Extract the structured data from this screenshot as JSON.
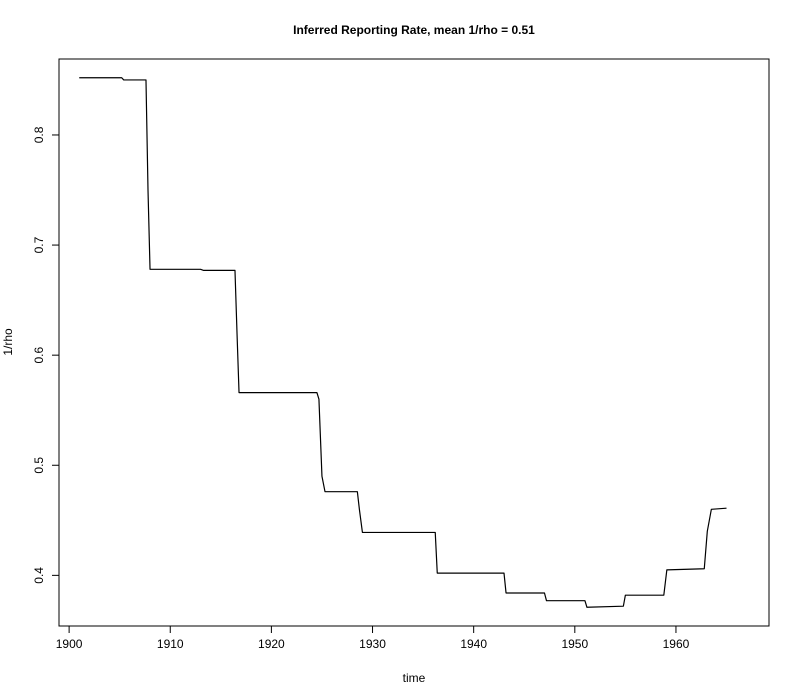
{
  "chart_data": {
    "type": "line",
    "title": "Inferred Reporting Rate, mean 1/rho = 0.51",
    "xlabel": "time",
    "ylabel": "1/rho",
    "xlim": [
      1899,
      1969.2
    ],
    "ylim": [
      0.354,
      0.869
    ],
    "x_ticks": [
      1900,
      1910,
      1920,
      1930,
      1940,
      1950,
      1960
    ],
    "x_tick_labels": [
      "1900",
      "1910",
      "1920",
      "1930",
      "1940",
      "1950",
      "1960"
    ],
    "y_ticks": [
      0.4,
      0.5,
      0.6,
      0.7,
      0.8
    ],
    "y_tick_labels": [
      "0.4",
      "0.5",
      "0.6",
      "0.7",
      "0.8"
    ],
    "grid": false,
    "legend": "none",
    "series": [
      {
        "color": "#000000",
        "x": [
          1901,
          1905.2,
          1905.4,
          1907.6,
          1907.8,
          1908.0,
          1913.0,
          1913.3,
          1916.4,
          1916.6,
          1916.8,
          1924.5,
          1924.7,
          1925.0,
          1925.3,
          1928.5,
          1928.7,
          1929.0,
          1936.2,
          1936.4,
          1943.0,
          1943.2,
          1947.0,
          1947.2,
          1951.0,
          1951.2,
          1954.8,
          1955.0,
          1958.8,
          1959.1,
          1962.8,
          1963.1,
          1963.5,
          1965
        ],
        "y": [
          0.852,
          0.852,
          0.85,
          0.85,
          0.75,
          0.678,
          0.678,
          0.677,
          0.677,
          0.62,
          0.566,
          0.566,
          0.56,
          0.49,
          0.476,
          0.476,
          0.46,
          0.439,
          0.439,
          0.402,
          0.402,
          0.384,
          0.384,
          0.377,
          0.377,
          0.371,
          0.372,
          0.382,
          0.382,
          0.405,
          0.406,
          0.44,
          0.46,
          0.461
        ]
      }
    ]
  }
}
